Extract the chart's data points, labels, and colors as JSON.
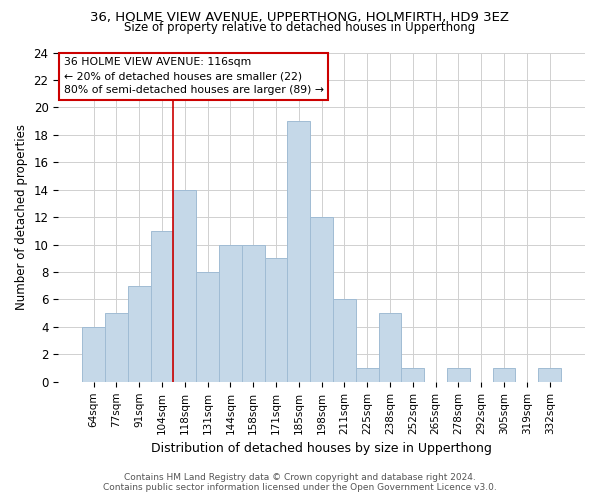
{
  "title_line1": "36, HOLME VIEW AVENUE, UPPERTHONG, HOLMFIRTH, HD9 3EZ",
  "title_line2": "Size of property relative to detached houses in Upperthong",
  "xlabel": "Distribution of detached houses by size in Upperthong",
  "ylabel": "Number of detached properties",
  "categories": [
    "64sqm",
    "77sqm",
    "91sqm",
    "104sqm",
    "118sqm",
    "131sqm",
    "144sqm",
    "158sqm",
    "171sqm",
    "185sqm",
    "198sqm",
    "211sqm",
    "225sqm",
    "238sqm",
    "252sqm",
    "265sqm",
    "278sqm",
    "292sqm",
    "305sqm",
    "319sqm",
    "332sqm"
  ],
  "values": [
    4,
    5,
    7,
    11,
    14,
    8,
    10,
    10,
    9,
    19,
    12,
    6,
    1,
    5,
    1,
    0,
    1,
    0,
    1,
    0,
    1
  ],
  "bar_color": "#c5d8e8",
  "bar_edgecolor": "#a0bcd4",
  "vline_x": 3.5,
  "vline_color": "#cc0000",
  "annotation_text": "36 HOLME VIEW AVENUE: 116sqm\n← 20% of detached houses are smaller (22)\n80% of semi-detached houses are larger (89) →",
  "annotation_box_edgecolor": "#cc0000",
  "ylim": [
    0,
    24
  ],
  "yticks": [
    0,
    2,
    4,
    6,
    8,
    10,
    12,
    14,
    16,
    18,
    20,
    22,
    24
  ],
  "footnote": "Contains HM Land Registry data © Crown copyright and database right 2024.\nContains public sector information licensed under the Open Government Licence v3.0.",
  "background_color": "#ffffff",
  "grid_color": "#d0d0d0"
}
